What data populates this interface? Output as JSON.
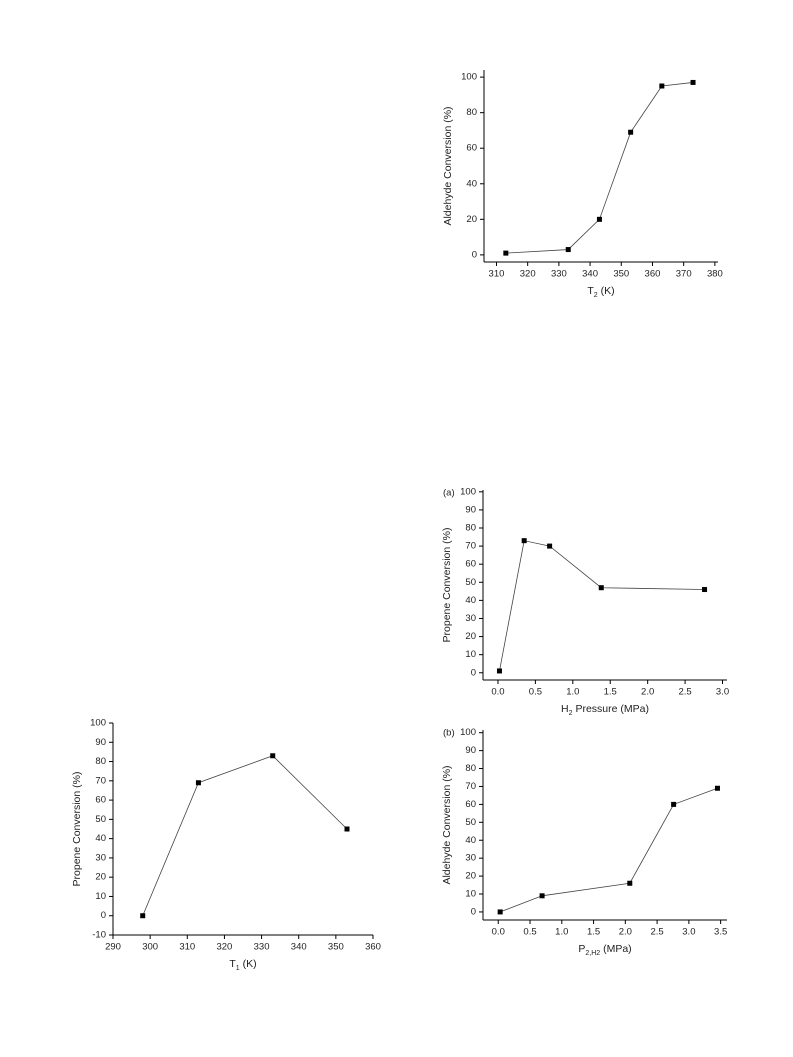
{
  "chart_data": [
    {
      "type": "line",
      "y_label": "Aldehyde Conversion (%)",
      "x_label": [
        "T",
        "2",
        " (K)"
      ],
      "x": [
        313,
        333,
        343,
        353,
        363,
        373
      ],
      "values": [
        1,
        3,
        20,
        69,
        95,
        97
      ],
      "color": "#000000",
      "xlim": [
        306,
        381
      ],
      "xticks": [
        310,
        320,
        330,
        340,
        350,
        360,
        370,
        380
      ],
      "ylim": [
        -4,
        104
      ],
      "yticks": [
        0,
        20,
        40,
        60,
        80,
        100
      ]
    },
    {
      "type": "line",
      "panel_label": "(a)",
      "y_label": "Propene Conversion (%)",
      "x_label": [
        "H",
        "2",
        " Pressure (MPa)"
      ],
      "x": [
        0.02,
        0.35,
        0.69,
        1.38,
        2.76
      ],
      "values": [
        1,
        73,
        70,
        47,
        46
      ],
      "color": "#000000",
      "xlim": [
        -0.2,
        3.06
      ],
      "xticks": [
        {
          "value": 0,
          "label": "0.0"
        },
        {
          "value": 0.5,
          "label": "0.5"
        },
        {
          "value": 1,
          "label": "1.0"
        },
        {
          "value": 1.5,
          "label": "1.5"
        },
        {
          "value": 2,
          "label": "2.0"
        },
        {
          "value": 2.5,
          "label": "2.5"
        },
        {
          "value": 3,
          "label": "3.0"
        }
      ],
      "ylim": [
        -4,
        101
      ],
      "yticks": [
        0,
        10,
        20,
        30,
        40,
        50,
        60,
        70,
        80,
        90,
        100
      ]
    },
    {
      "type": "line",
      "panel_label": "(b)",
      "y_label": "Aldehyde Conversion (%)",
      "x_label": [
        "P",
        "2,H2",
        "  (MPa)"
      ],
      "x": [
        0.03,
        0.69,
        2.07,
        2.76,
        3.45
      ],
      "values": [
        0,
        9,
        16,
        60,
        69
      ],
      "color": "#000000",
      "xlim": [
        -0.24,
        3.6
      ],
      "xticks": [
        {
          "value": 0,
          "label": "0.0"
        },
        {
          "value": 0.5,
          "label": "0.5"
        },
        {
          "value": 1,
          "label": "1.0"
        },
        {
          "value": 1.5,
          "label": "1.5"
        },
        {
          "value": 2,
          "label": "2.0"
        },
        {
          "value": 2.5,
          "label": "2.5"
        },
        {
          "value": 3,
          "label": "3.0"
        },
        {
          "value": 3.5,
          "label": "3.5"
        }
      ],
      "ylim": [
        -4.5,
        101.5
      ],
      "yticks": [
        0,
        10,
        20,
        30,
        40,
        50,
        60,
        70,
        80,
        90,
        100
      ]
    },
    {
      "type": "line",
      "y_label": "Propene Conversion (%)",
      "x_label": [
        "T",
        "1",
        " (K)"
      ],
      "x": [
        298,
        313,
        333,
        353
      ],
      "values": [
        0,
        69,
        83,
        45
      ],
      "color": "#000000",
      "xlim": [
        290,
        360
      ],
      "xticks": [
        290,
        300,
        310,
        320,
        330,
        340,
        350,
        360
      ],
      "ylim": [
        -10,
        100
      ],
      "yticks": [
        -10,
        0,
        10,
        20,
        30,
        40,
        50,
        60,
        70,
        80,
        90,
        100
      ]
    }
  ]
}
